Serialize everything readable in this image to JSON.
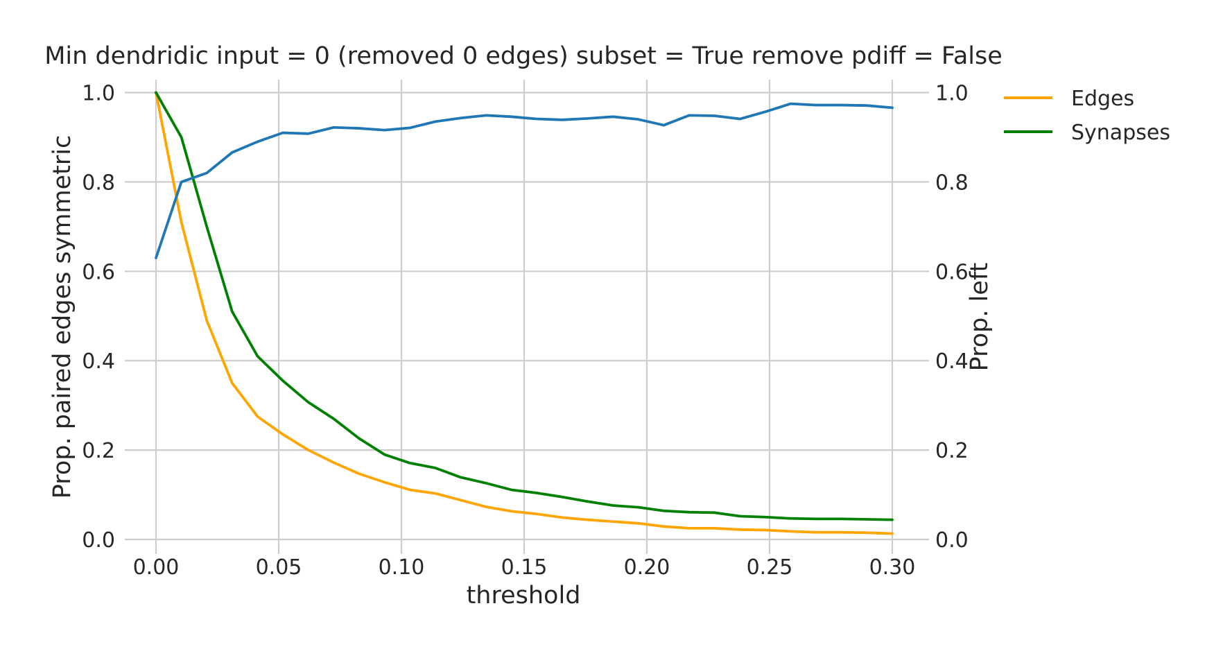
{
  "chart_data": {
    "type": "line",
    "title": "Min dendridic input = 0 (removed 0 edges) subset = True remove pdiff = False",
    "xlabel": "threshold",
    "ylabel": "Prop. paired edges symmetric",
    "y2label": "Prop. left",
    "xlim": [
      -0.015,
      0.315
    ],
    "ylim": [
      0,
      1
    ],
    "y2lim": [
      0,
      1
    ],
    "grid": true,
    "legend_position": "upper right, outside plot",
    "x_ticks": [
      "0.00",
      "0.05",
      "0.10",
      "0.15",
      "0.20",
      "0.25",
      "0.30"
    ],
    "y_ticks": [
      "0.0",
      "0.2",
      "0.4",
      "0.6",
      "0.8",
      "1.0"
    ],
    "y2_ticks": [
      "0.0",
      "0.2",
      "0.4",
      "0.6",
      "0.8",
      "1.0"
    ],
    "x": [
      0.0,
      0.01034,
      0.02069,
      0.03103,
      0.04138,
      0.05172,
      0.06207,
      0.07241,
      0.08276,
      0.0931,
      0.10345,
      0.11379,
      0.12414,
      0.13448,
      0.14483,
      0.15517,
      0.16552,
      0.17586,
      0.18621,
      0.19655,
      0.2069,
      0.21724,
      0.22759,
      0.23793,
      0.24828,
      0.25862,
      0.26897,
      0.27931,
      0.28966,
      0.3
    ],
    "series": [
      {
        "axis": "left",
        "color": "#1f77b4",
        "values": [
          0.63,
          0.8,
          0.82,
          0.866,
          0.89,
          0.91,
          0.908,
          0.922,
          0.92,
          0.916,
          0.921,
          0.935,
          0.943,
          0.949,
          0.946,
          0.941,
          0.939,
          0.942,
          0.946,
          0.94,
          0.927,
          0.949,
          0.948,
          0.941,
          0.957,
          0.975,
          0.972,
          0.972,
          0.971,
          0.966
        ]
      },
      {
        "name": "Edges",
        "axis": "right",
        "color": "#ffa500",
        "values": [
          1.0,
          0.71,
          0.49,
          0.35,
          0.275,
          0.235,
          0.2,
          0.172,
          0.147,
          0.128,
          0.111,
          0.103,
          0.088,
          0.073,
          0.063,
          0.057,
          0.049,
          0.044,
          0.04,
          0.036,
          0.029,
          0.025,
          0.025,
          0.022,
          0.021,
          0.018,
          0.016,
          0.016,
          0.015,
          0.013
        ]
      },
      {
        "name": "Synapses",
        "axis": "right",
        "color": "#008000",
        "values": [
          1.0,
          0.9,
          0.7,
          0.51,
          0.41,
          0.355,
          0.307,
          0.27,
          0.226,
          0.19,
          0.171,
          0.16,
          0.139,
          0.126,
          0.111,
          0.104,
          0.095,
          0.085,
          0.076,
          0.072,
          0.064,
          0.061,
          0.06,
          0.052,
          0.05,
          0.047,
          0.046,
          0.046,
          0.045,
          0.044
        ]
      }
    ]
  }
}
